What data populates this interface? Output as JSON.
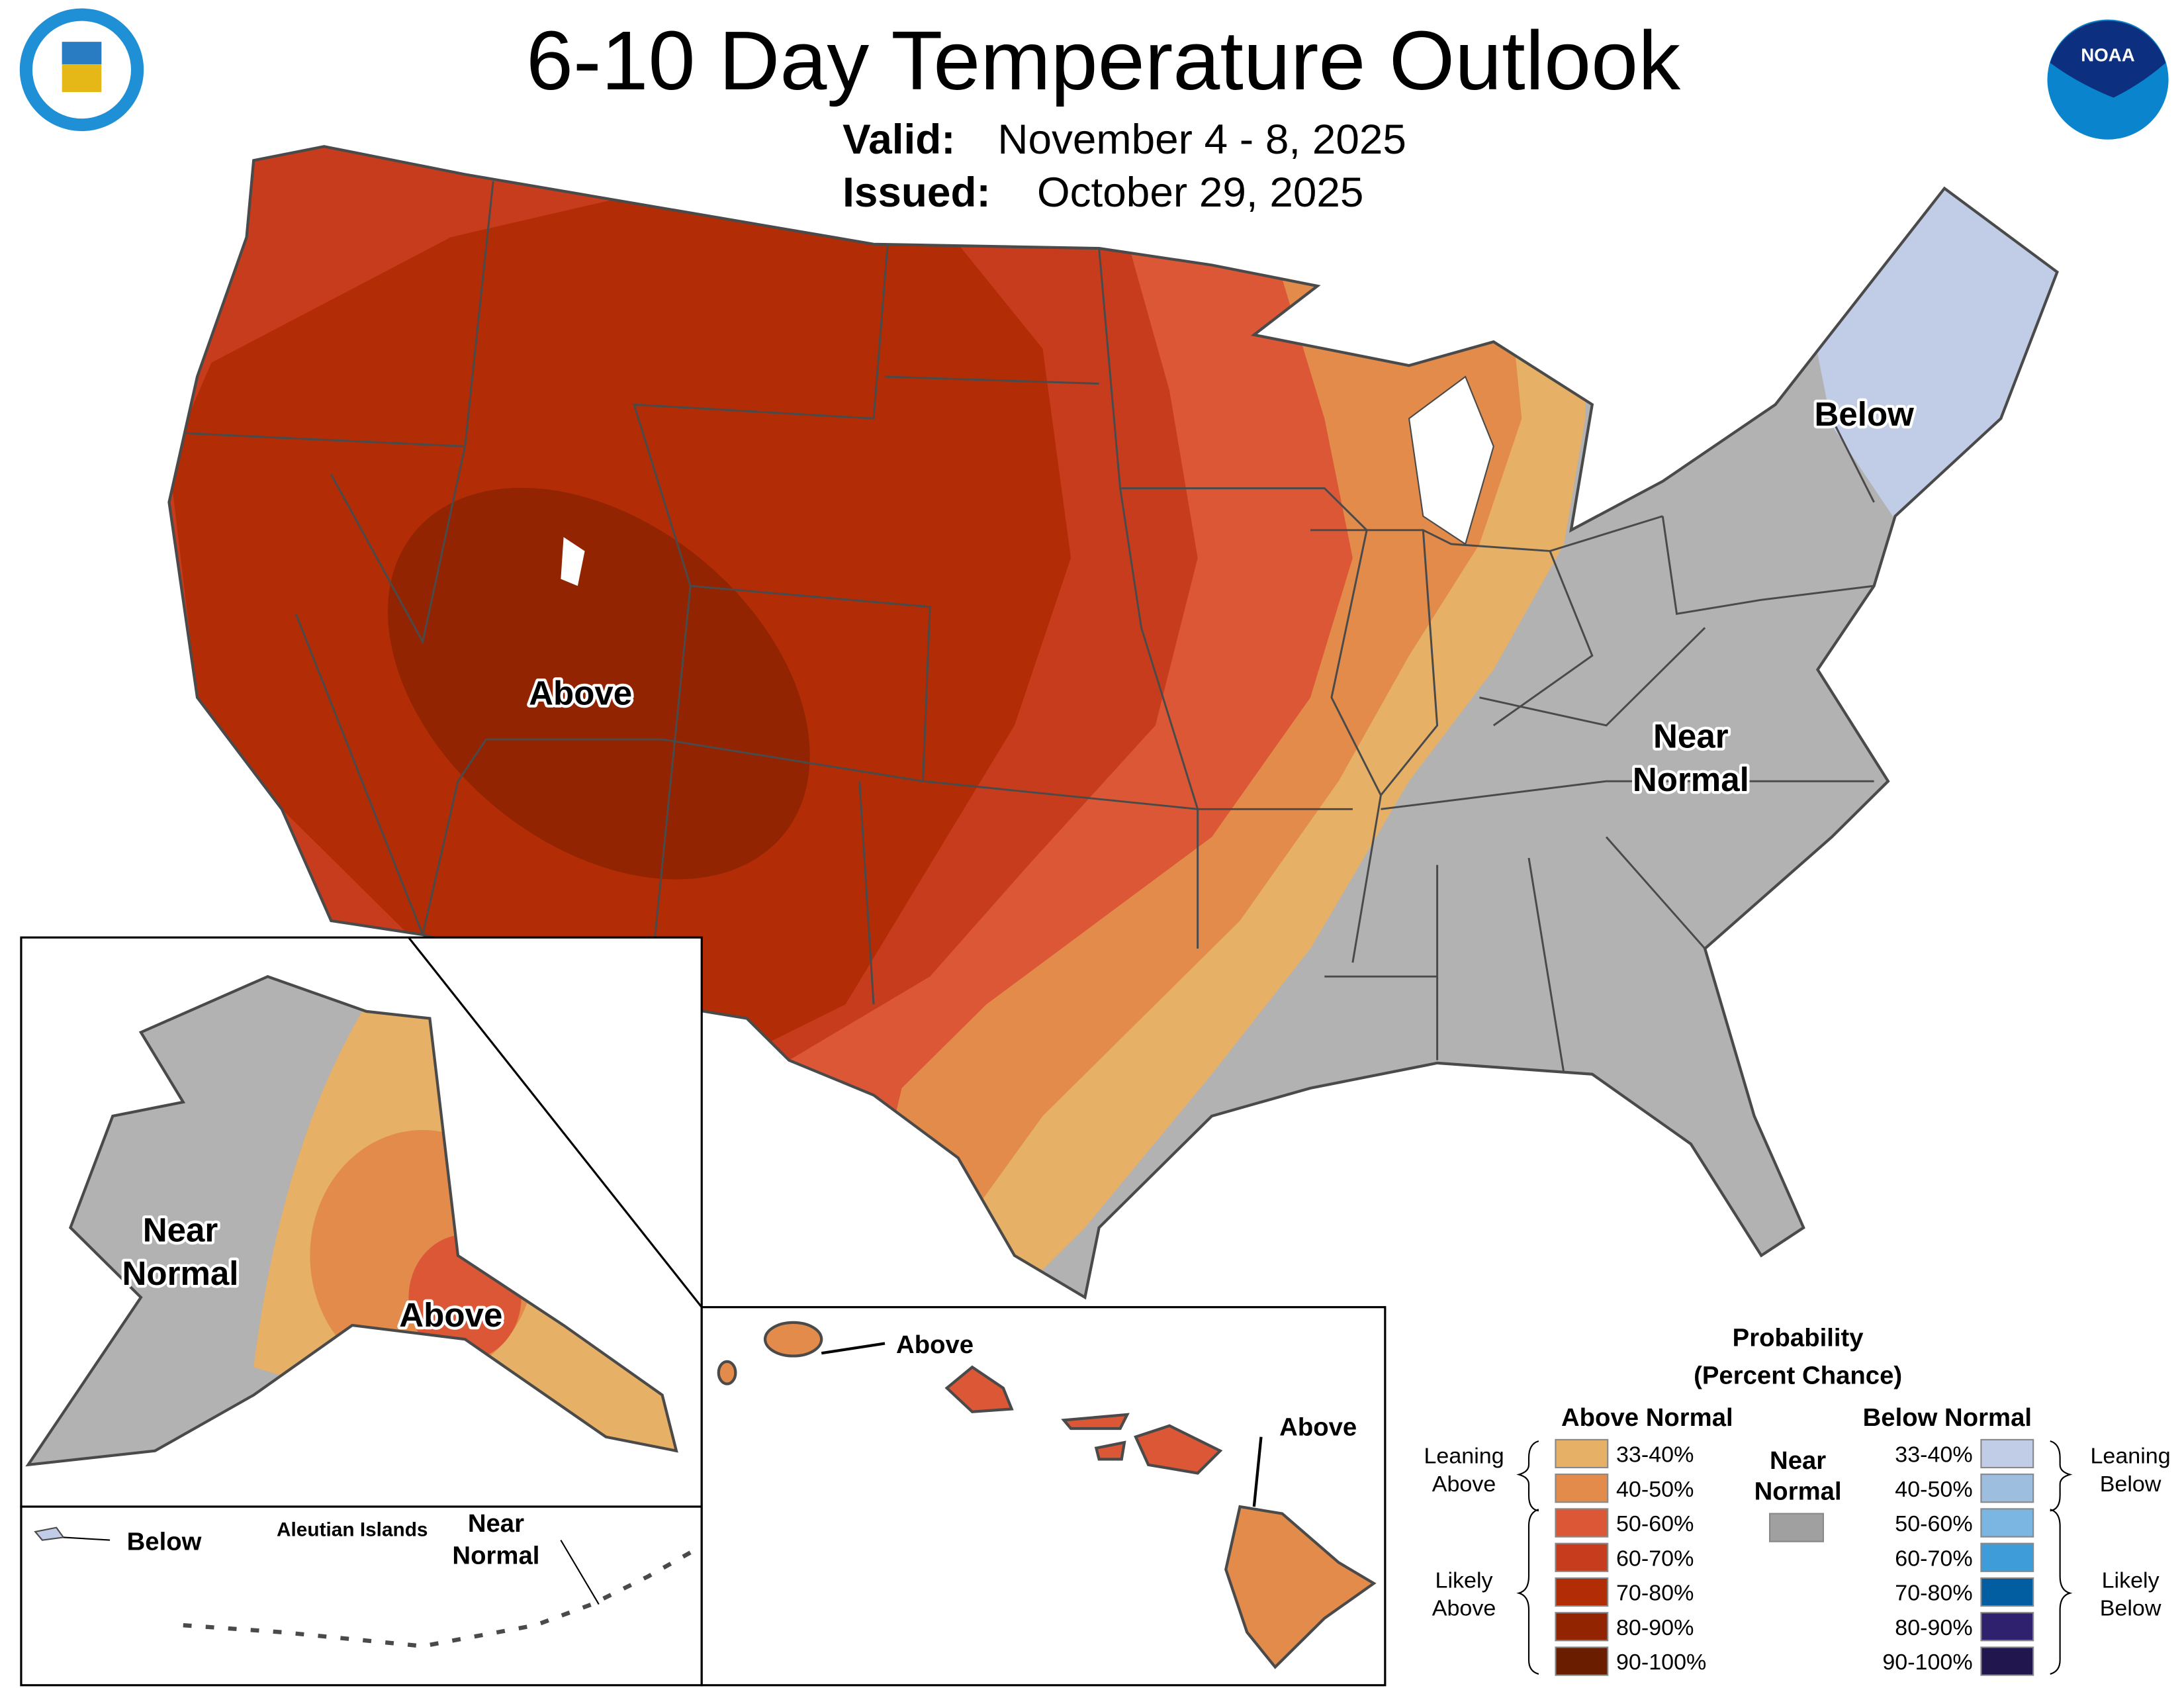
{
  "header": {
    "title": "6-10 Day Temperature Outlook",
    "valid_label": "Valid:",
    "valid_value": "November 4 - 8, 2025",
    "issued_label": "Issued:",
    "issued_value": "October 29, 2025",
    "left_logo": "department-of-commerce-seal",
    "right_logo": "noaa-logo",
    "noaa_text": "NOAA"
  },
  "map_labels": {
    "conus_above": "Above",
    "conus_near_1": "Near",
    "conus_near_2": "Normal",
    "conus_below": "Below",
    "ak_near_1": "Near",
    "ak_near_2": "Normal",
    "ak_above": "Above",
    "aleutian_below": "Below",
    "aleutian_title": "Aleutian Islands",
    "aleutian_near_1": "Near",
    "aleutian_near_2": "Normal",
    "hi_above_1": "Above",
    "hi_above_2": "Above"
  },
  "legend": {
    "title_1": "Probability",
    "title_2": "(Percent Chance)",
    "above_header": "Above Normal",
    "below_header": "Below Normal",
    "near_1": "Near",
    "near_2": "Normal",
    "near_color": "#a0a0a0",
    "leaning_above_1": "Leaning",
    "leaning_above_2": "Above",
    "likely_above_1": "Likely",
    "likely_above_2": "Above",
    "leaning_below_1": "Leaning",
    "leaning_below_2": "Below",
    "likely_below_1": "Likely",
    "likely_below_2": "Below",
    "above": [
      {
        "label": "33-40%",
        "color": "#e6b066"
      },
      {
        "label": "40-50%",
        "color": "#e38b4b"
      },
      {
        "label": "50-60%",
        "color": "#dc5736"
      },
      {
        "label": "60-70%",
        "color": "#c83c1e"
      },
      {
        "label": "70-80%",
        "color": "#b22c06"
      },
      {
        "label": "80-90%",
        "color": "#922402"
      },
      {
        "label": "90-100%",
        "color": "#6b1d00"
      }
    ],
    "below": [
      {
        "label": "33-40%",
        "color": "#c1cce6"
      },
      {
        "label": "40-50%",
        "color": "#9dbedf"
      },
      {
        "label": "50-60%",
        "color": "#7bb5e2"
      },
      {
        "label": "60-70%",
        "color": "#3e9cd8"
      },
      {
        "label": "70-80%",
        "color": "#035ea1"
      },
      {
        "label": "80-90%",
        "color": "#2f216e"
      },
      {
        "label": "90-100%",
        "color": "#22164e"
      }
    ]
  }
}
